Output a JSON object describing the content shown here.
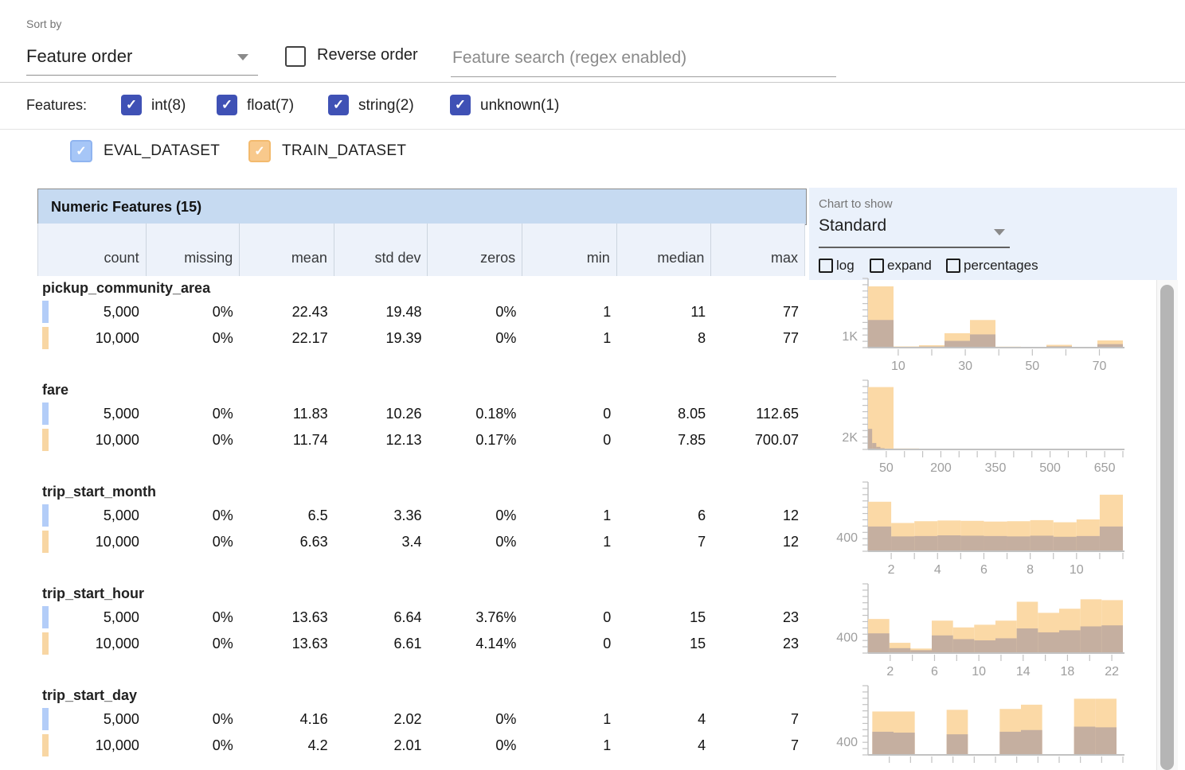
{
  "colors": {
    "accent_indigo": "#3f51b5",
    "eval_blue": "#b3cdf8",
    "eval_checkbox": "#a6c6f7",
    "train_orange": "#f8d6a3",
    "train_checkbox": "#f8c98c",
    "overlap_brown": "#c5afa0",
    "train_bar": "#fbd9a6",
    "header_band_bg": "#c6daf1",
    "panel_bg": "#eaf1fb",
    "axis_gray": "#c2c2c2",
    "tick_text": "#9e9e9e"
  },
  "toolbar": {
    "sort_by_label": "Sort by",
    "sort_by_value": "Feature order",
    "reverse_order_label": "Reverse order",
    "reverse_order_checked": false,
    "search_placeholder": "Feature search (regex enabled)",
    "search_value": ""
  },
  "features_filter": {
    "label": "Features:",
    "types": [
      {
        "label": "int(8)",
        "checked": true
      },
      {
        "label": "float(7)",
        "checked": true
      },
      {
        "label": "string(2)",
        "checked": true
      },
      {
        "label": "unknown(1)",
        "checked": true
      }
    ]
  },
  "datasets": [
    {
      "name": "EVAL_DATASET",
      "checked": true,
      "color_key": "eval_checkbox"
    },
    {
      "name": "TRAIN_DATASET",
      "checked": true,
      "color_key": "train_checkbox"
    }
  ],
  "chart_controls": {
    "label": "Chart to show",
    "value": "Standard",
    "options": [
      {
        "label": "log",
        "checked": false
      },
      {
        "label": "expand",
        "checked": false
      },
      {
        "label": "percentages",
        "checked": false
      }
    ]
  },
  "table": {
    "title": "Numeric Features (15)",
    "columns": [
      "count",
      "missing",
      "mean",
      "std dev",
      "zeros",
      "min",
      "median",
      "max"
    ],
    "features": [
      {
        "name": "pickup_community_area",
        "rows": [
          [
            "5,000",
            "0%",
            "22.43",
            "19.48",
            "0%",
            "1",
            "11",
            "77"
          ],
          [
            "10,000",
            "0%",
            "22.17",
            "19.39",
            "0%",
            "1",
            "8",
            "77"
          ]
        ]
      },
      {
        "name": "fare",
        "rows": [
          [
            "5,000",
            "0%",
            "11.83",
            "10.26",
            "0.18%",
            "0",
            "8.05",
            "112.65"
          ],
          [
            "10,000",
            "0%",
            "11.74",
            "12.13",
            "0.17%",
            "0",
            "7.85",
            "700.07"
          ]
        ]
      },
      {
        "name": "trip_start_month",
        "rows": [
          [
            "5,000",
            "0%",
            "6.5",
            "3.36",
            "0%",
            "1",
            "6",
            "12"
          ],
          [
            "10,000",
            "0%",
            "6.63",
            "3.4",
            "0%",
            "1",
            "7",
            "12"
          ]
        ]
      },
      {
        "name": "trip_start_hour",
        "rows": [
          [
            "5,000",
            "0%",
            "13.63",
            "6.64",
            "3.76%",
            "0",
            "15",
            "23"
          ],
          [
            "10,000",
            "0%",
            "13.63",
            "6.61",
            "4.14%",
            "0",
            "15",
            "23"
          ]
        ]
      },
      {
        "name": "trip_start_day",
        "rows": [
          [
            "5,000",
            "0%",
            "4.16",
            "2.02",
            "0%",
            "1",
            "4",
            "7"
          ],
          [
            "10,000",
            "0%",
            "4.2",
            "2.01",
            "0%",
            "1",
            "4",
            "7"
          ]
        ]
      }
    ]
  },
  "chart_data": [
    {
      "feature": "pickup_community_area",
      "type": "bar",
      "x_domain": [
        1,
        77
      ],
      "ymax": 5300,
      "xticks": [
        {
          "v": 10,
          "label": "10"
        },
        {
          "v": 30,
          "label": "30"
        },
        {
          "v": 50,
          "label": "50"
        },
        {
          "v": 70,
          "label": "70"
        }
      ],
      "minor_tick": {
        "start": 10,
        "step": 10
      },
      "y_label": {
        "text": "1K",
        "value": 1000
      },
      "series": [
        {
          "name": "TRAIN_DATASET",
          "role": "train",
          "bins": [
            [
              1,
              8.6,
              5100
            ],
            [
              8.6,
              16.2,
              100
            ],
            [
              16.2,
              23.8,
              200
            ],
            [
              23.8,
              31.4,
              1200
            ],
            [
              31.4,
              39,
              2300
            ],
            [
              39,
              46.6,
              80
            ],
            [
              46.6,
              54.2,
              50
            ],
            [
              54.2,
              61.8,
              230
            ],
            [
              61.8,
              69.4,
              50
            ],
            [
              69.4,
              77,
              600
            ]
          ]
        },
        {
          "name": "EVAL_DATASET",
          "role": "eval",
          "bins": [
            [
              1,
              8.6,
              2300
            ],
            [
              8.6,
              16.2,
              50
            ],
            [
              16.2,
              23.8,
              90
            ],
            [
              23.8,
              31.4,
              560
            ],
            [
              31.4,
              39,
              1100
            ],
            [
              39,
              46.6,
              40
            ],
            [
              46.6,
              54.2,
              25
            ],
            [
              54.2,
              61.8,
              110
            ],
            [
              61.8,
              69.4,
              25
            ],
            [
              69.4,
              77,
              290
            ]
          ]
        }
      ]
    },
    {
      "feature": "fare",
      "type": "bar",
      "x_domain": [
        0,
        700
      ],
      "ymax": 9900,
      "xticks": [
        {
          "v": 50,
          "label": "50"
        },
        {
          "v": 200,
          "label": "200"
        },
        {
          "v": 350,
          "label": "350"
        },
        {
          "v": 500,
          "label": "500"
        },
        {
          "v": 650,
          "label": "650"
        }
      ],
      "minor_tick": {
        "start": 50,
        "step": 50
      },
      "y_label": {
        "text": "2K",
        "value": 2000
      },
      "series": [
        {
          "name": "TRAIN_DATASET",
          "role": "train",
          "bins": [
            [
              0,
              70,
              9700
            ],
            [
              70,
              140,
              150
            ],
            [
              140,
              210,
              60
            ],
            [
              210,
              280,
              30
            ],
            [
              280,
              350,
              20
            ],
            [
              350,
              420,
              10
            ],
            [
              420,
              490,
              5
            ],
            [
              490,
              560,
              5
            ],
            [
              560,
              630,
              5
            ],
            [
              630,
              700,
              15
            ]
          ]
        },
        {
          "name": "EVAL_DATASET",
          "role": "eval",
          "bins": [
            [
              0,
              11.3,
              3200
            ],
            [
              11.3,
              22.6,
              1000
            ],
            [
              22.6,
              33.9,
              400
            ],
            [
              33.9,
              45.2,
              200
            ],
            [
              45.2,
              56.5,
              100
            ],
            [
              56.5,
              67.8,
              50
            ],
            [
              67.8,
              79.1,
              25
            ],
            [
              79.1,
              90.4,
              15
            ],
            [
              90.4,
              101.7,
              5
            ],
            [
              101.7,
              112.65,
              5
            ]
          ]
        }
      ]
    },
    {
      "feature": "trip_start_month",
      "type": "bar",
      "x_domain": [
        1,
        12
      ],
      "ymax": 1800,
      "xticks": [
        {
          "v": 2,
          "label": "2"
        },
        {
          "v": 4,
          "label": "4"
        },
        {
          "v": 6,
          "label": "6"
        },
        {
          "v": 8,
          "label": "8"
        },
        {
          "v": 10,
          "label": "10"
        }
      ],
      "minor_tick": {
        "start": 2,
        "step": 1
      },
      "y_label": {
        "text": "400",
        "value": 400
      },
      "series": [
        {
          "name": "TRAIN_DATASET",
          "role": "train",
          "bins": [
            [
              1,
              2,
              1400
            ],
            [
              2,
              3,
              800
            ],
            [
              3,
              4,
              850
            ],
            [
              4,
              5,
              870
            ],
            [
              5,
              6,
              860
            ],
            [
              6,
              7,
              840
            ],
            [
              7,
              8,
              850
            ],
            [
              8,
              9,
              880
            ],
            [
              9,
              10,
              820
            ],
            [
              10,
              11,
              900
            ],
            [
              11,
              12,
              1600
            ]
          ]
        },
        {
          "name": "EVAL_DATASET",
          "role": "eval",
          "bins": [
            [
              1,
              2,
              700
            ],
            [
              2,
              3,
              420
            ],
            [
              3,
              4,
              430
            ],
            [
              4,
              5,
              450
            ],
            [
              5,
              6,
              440
            ],
            [
              6,
              7,
              430
            ],
            [
              7,
              8,
              420
            ],
            [
              8,
              9,
              440
            ],
            [
              9,
              10,
              410
            ],
            [
              10,
              11,
              430
            ],
            [
              11,
              12,
              700
            ]
          ]
        }
      ]
    },
    {
      "feature": "trip_start_hour",
      "type": "bar",
      "x_domain": [
        0,
        23
      ],
      "ymax": 1550,
      "xticks": [
        {
          "v": 2,
          "label": "2"
        },
        {
          "v": 6,
          "label": "6"
        },
        {
          "v": 10,
          "label": "10"
        },
        {
          "v": 14,
          "label": "14"
        },
        {
          "v": 18,
          "label": "18"
        },
        {
          "v": 22,
          "label": "22"
        }
      ],
      "minor_tick": {
        "start": 2,
        "step": 2
      },
      "y_label": {
        "text": "400",
        "value": 400
      },
      "series": [
        {
          "name": "TRAIN_DATASET",
          "role": "train",
          "bins": [
            [
              0,
              1.92,
              830
            ],
            [
              1.92,
              3.83,
              250
            ],
            [
              3.83,
              5.75,
              110
            ],
            [
              5.75,
              7.67,
              790
            ],
            [
              7.67,
              9.58,
              625
            ],
            [
              9.58,
              11.5,
              690
            ],
            [
              11.5,
              13.42,
              790
            ],
            [
              13.42,
              15.33,
              1250
            ],
            [
              15.33,
              17.25,
              980
            ],
            [
              17.25,
              19.17,
              1080
            ],
            [
              19.17,
              21.08,
              1310
            ],
            [
              21.08,
              23,
              1290
            ]
          ]
        },
        {
          "name": "EVAL_DATASET",
          "role": "eval",
          "bins": [
            [
              0,
              1.92,
              480
            ],
            [
              1.92,
              3.83,
              120
            ],
            [
              3.83,
              5.75,
              70
            ],
            [
              5.75,
              7.67,
              430
            ],
            [
              7.67,
              9.58,
              340
            ],
            [
              9.58,
              11.5,
              310
            ],
            [
              11.5,
              13.42,
              360
            ],
            [
              13.42,
              15.33,
              600
            ],
            [
              15.33,
              17.25,
              505
            ],
            [
              17.25,
              19.17,
              555
            ],
            [
              19.17,
              21.08,
              650
            ],
            [
              21.08,
              23,
              675
            ]
          ]
        }
      ]
    },
    {
      "feature": "trip_start_day",
      "type": "bar",
      "x_domain": [
        1,
        7
      ],
      "ymax": 1870,
      "xticks": [],
      "minor_tick": {
        "start": 1.5,
        "step": 0.5
      },
      "y_label": {
        "text": "400",
        "value": 400
      },
      "series": [
        {
          "name": "TRAIN_DATASET",
          "role": "train",
          "bins": [
            [
              1.1,
              1.6,
              1275
            ],
            [
              1.6,
              2.1,
              1275
            ],
            [
              2.85,
              3.35,
              1325
            ],
            [
              4.1,
              4.6,
              1350
            ],
            [
              4.6,
              5.1,
              1475
            ],
            [
              5.85,
              6.35,
              1650
            ],
            [
              6.35,
              6.85,
              1650
            ]
          ]
        },
        {
          "name": "EVAL_DATASET",
          "role": "eval",
          "bins": [
            [
              1.1,
              1.6,
              680
            ],
            [
              1.6,
              2.1,
              655
            ],
            [
              2.85,
              3.35,
              605
            ],
            [
              4.1,
              4.6,
              680
            ],
            [
              4.6,
              5.1,
              730
            ],
            [
              5.85,
              6.35,
              830
            ],
            [
              6.35,
              6.85,
              810
            ]
          ]
        }
      ]
    }
  ]
}
